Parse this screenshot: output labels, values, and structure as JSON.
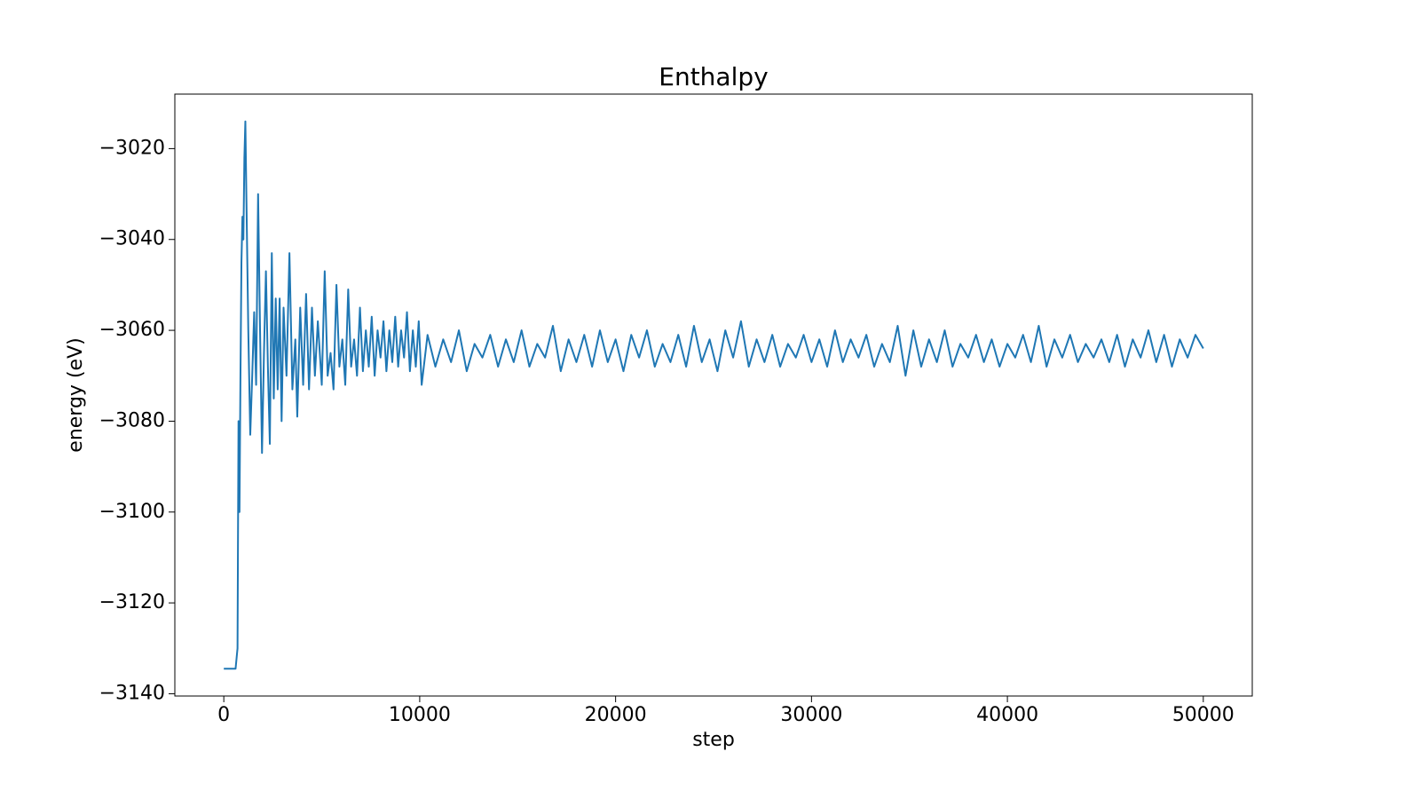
{
  "chart_data": {
    "type": "line",
    "title": "Enthalpy",
    "x_label": "step",
    "y_label": "energy (eV)",
    "xlim": [
      -2500,
      52500
    ],
    "ylim": [
      -3140.5,
      -3008
    ],
    "xticks": [
      0,
      10000,
      20000,
      30000,
      40000,
      50000
    ],
    "yticks": [
      {
        "value": -3020,
        "label": "−3020"
      },
      {
        "value": -3040,
        "label": "−3040"
      },
      {
        "value": -3060,
        "label": "−3060"
      },
      {
        "value": -3080,
        "label": "−3080"
      },
      {
        "value": -3100,
        "label": "−3100"
      },
      {
        "value": -3120,
        "label": "−3120"
      },
      {
        "value": -3140,
        "label": "−3140"
      }
    ],
    "grid": false,
    "x": [
      0,
      300,
      600,
      700,
      750,
      800,
      850,
      900,
      950,
      1000,
      1050,
      1100,
      1150,
      1250,
      1350,
      1450,
      1550,
      1650,
      1750,
      1850,
      1950,
      2050,
      2150,
      2250,
      2350,
      2450,
      2550,
      2650,
      2750,
      2850,
      2950,
      3050,
      3200,
      3350,
      3500,
      3650,
      3750,
      3900,
      4050,
      4200,
      4350,
      4500,
      4650,
      4800,
      5000,
      5150,
      5300,
      5450,
      5600,
      5750,
      5900,
      6050,
      6200,
      6350,
      6500,
      6650,
      6800,
      6950,
      7100,
      7250,
      7400,
      7550,
      7700,
      7850,
      8000,
      8150,
      8300,
      8450,
      8600,
      8750,
      8900,
      9050,
      9200,
      9350,
      9500,
      9650,
      9800,
      9950,
      10100,
      10400,
      10800,
      11200,
      11600,
      12000,
      12400,
      12800,
      13200,
      13600,
      14000,
      14400,
      14800,
      15200,
      15600,
      16000,
      16400,
      16800,
      17200,
      17600,
      18000,
      18400,
      18800,
      19200,
      19600,
      20000,
      20400,
      20800,
      21200,
      21600,
      22000,
      22400,
      22800,
      23200,
      23600,
      24000,
      24400,
      24800,
      25200,
      25600,
      26000,
      26400,
      26800,
      27200,
      27600,
      28000,
      28400,
      28800,
      29200,
      29600,
      30000,
      30400,
      30800,
      31200,
      31600,
      32000,
      32400,
      32800,
      33200,
      33600,
      34000,
      34400,
      34800,
      35200,
      35600,
      36000,
      36400,
      36800,
      37200,
      37600,
      38000,
      38400,
      38800,
      39200,
      39600,
      40000,
      40400,
      40800,
      41200,
      41600,
      42000,
      42400,
      42800,
      43200,
      43600,
      44000,
      44400,
      44800,
      45200,
      45600,
      46000,
      46400,
      46800,
      47200,
      47600,
      48000,
      48400,
      48800,
      49200,
      49600,
      50000
    ],
    "series": [
      {
        "name": "Enthalpy",
        "color": "#1f77b4",
        "values": [
          -3134.5,
          -3134.5,
          -3134.5,
          -3130,
          -3080,
          -3100,
          -3070,
          -3045,
          -3035,
          -3040,
          -3022,
          -3014,
          -3030,
          -3060,
          -3083,
          -3070,
          -3056,
          -3072,
          -3030,
          -3060,
          -3087,
          -3065,
          -3047,
          -3068,
          -3085,
          -3043,
          -3075,
          -3053,
          -3073,
          -3053,
          -3080,
          -3055,
          -3070,
          -3043,
          -3073,
          -3062,
          -3079,
          -3055,
          -3072,
          -3052,
          -3073,
          -3055,
          -3070,
          -3058,
          -3072,
          -3047,
          -3070,
          -3065,
          -3073,
          -3050,
          -3068,
          -3062,
          -3072,
          -3051,
          -3068,
          -3062,
          -3070,
          -3055,
          -3069,
          -3060,
          -3068,
          -3057,
          -3070,
          -3060,
          -3066,
          -3058,
          -3069,
          -3060,
          -3067,
          -3057,
          -3068,
          -3060,
          -3066,
          -3056,
          -3069,
          -3060,
          -3068,
          -3058,
          -3072,
          -3061,
          -3068,
          -3062,
          -3067,
          -3060,
          -3069,
          -3063,
          -3066,
          -3061,
          -3068,
          -3062,
          -3067,
          -3060,
          -3068,
          -3063,
          -3066,
          -3059,
          -3069,
          -3062,
          -3067,
          -3061,
          -3068,
          -3060,
          -3067,
          -3062,
          -3069,
          -3061,
          -3066,
          -3060,
          -3068,
          -3063,
          -3067,
          -3061,
          -3068,
          -3059,
          -3067,
          -3062,
          -3069,
          -3060,
          -3066,
          -3058,
          -3068,
          -3062,
          -3067,
          -3061,
          -3068,
          -3063,
          -3066,
          -3061,
          -3067,
          -3062,
          -3068,
          -3060,
          -3067,
          -3062,
          -3066,
          -3061,
          -3068,
          -3063,
          -3067,
          -3059,
          -3070,
          -3060,
          -3068,
          -3062,
          -3067,
          -3060,
          -3068,
          -3063,
          -3066,
          -3061,
          -3067,
          -3062,
          -3068,
          -3063,
          -3066,
          -3061,
          -3067,
          -3059,
          -3068,
          -3062,
          -3066,
          -3061,
          -3067,
          -3063,
          -3066,
          -3062,
          -3067,
          -3061,
          -3068,
          -3062,
          -3066,
          -3060,
          -3067,
          -3061,
          -3068,
          -3062,
          -3066,
          -3061,
          -3064
        ]
      }
    ]
  }
}
